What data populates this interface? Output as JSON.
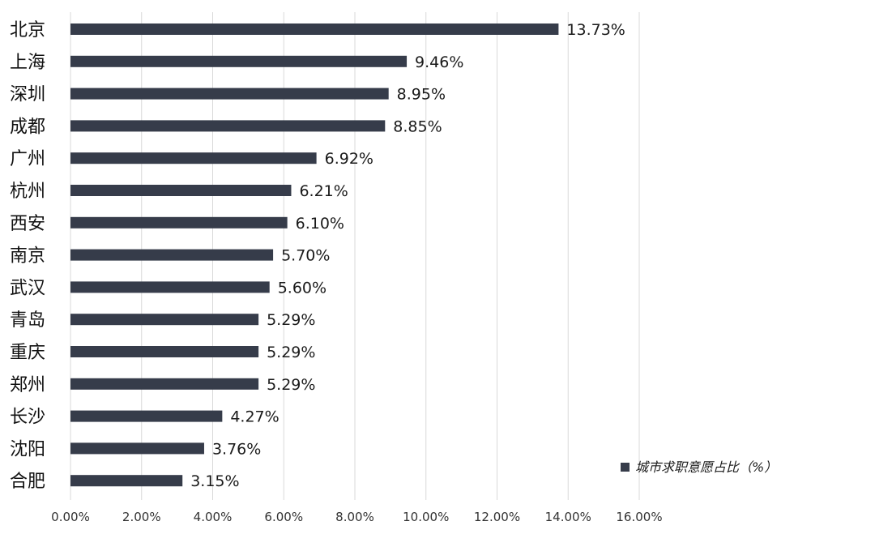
{
  "chart_data": {
    "type": "bar",
    "orientation": "horizontal",
    "categories": [
      "北京",
      "上海",
      "深圳",
      "成都",
      "广州",
      "杭州",
      "西安",
      "南京",
      "武汉",
      "青岛",
      "重庆",
      "郑州",
      "长沙",
      "沈阳",
      "合肥"
    ],
    "series": [
      {
        "name": "城市求职意愿占比（%）",
        "values": [
          13.73,
          9.46,
          8.95,
          8.85,
          6.92,
          6.21,
          6.1,
          5.7,
          5.6,
          5.29,
          5.29,
          5.29,
          4.27,
          3.76,
          3.15
        ],
        "labels": [
          "13.73%",
          "9.46%",
          "8.95%",
          "8.85%",
          "6.92%",
          "6.21%",
          "6.10%",
          "5.70%",
          "5.60%",
          "5.29%",
          "5.29%",
          "5.29%",
          "4.27%",
          "3.76%",
          "3.15%"
        ]
      }
    ],
    "xlim": [
      0,
      16
    ],
    "xticks": [
      0,
      2,
      4,
      6,
      8,
      10,
      12,
      14,
      16
    ],
    "xtick_labels": [
      "0.00%",
      "2.00%",
      "4.00%",
      "6.00%",
      "8.00%",
      "10.00%",
      "12.00%",
      "14.00%",
      "16.00%"
    ],
    "grid": "vertical",
    "legend_position": "bottom-right",
    "bar_color": "#363c4a",
    "grid_color": "#d9d9d9",
    "title": "",
    "xlabel": "",
    "ylabel": ""
  }
}
